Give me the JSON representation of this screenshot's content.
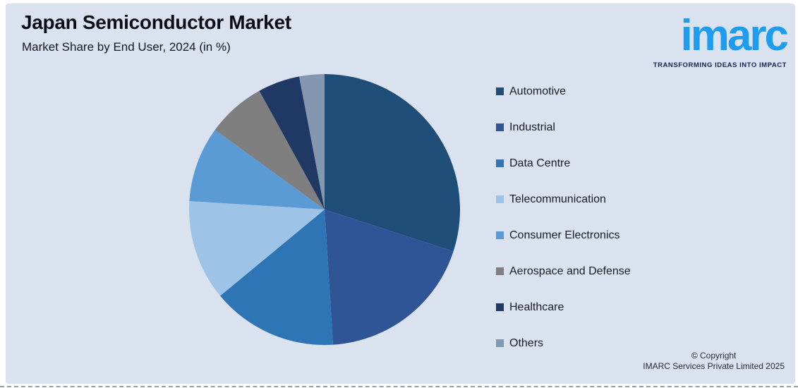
{
  "header": {
    "title": "Japan Semiconductor Market",
    "subtitle": "Market Share by End User, 2024 (in %)"
  },
  "logo": {
    "brand": "imarc",
    "tagline": "TRANSFORMING IDEAS INTO IMPACT",
    "brand_color": "#1e9df0",
    "tagline_color": "#122450"
  },
  "chart_data": {
    "type": "pie",
    "title": "Japan Semiconductor Market",
    "subtitle": "Market Share by End User, 2024 (in %)",
    "unit": "%",
    "start_angle_deg": 0,
    "direction": "clockwise",
    "legend_position": "right",
    "data_labels_shown": false,
    "segments": [
      {
        "label": "Automotive",
        "value": 30,
        "color": "#1f4e79"
      },
      {
        "label": "Industrial",
        "value": 19,
        "color": "#2f5597"
      },
      {
        "label": "Data Centre",
        "value": 15,
        "color": "#2e75b6"
      },
      {
        "label": "Telecommunication",
        "value": 12,
        "color": "#9dc3e6"
      },
      {
        "label": "Consumer Electronics",
        "value": 9,
        "color": "#5b9bd5"
      },
      {
        "label": "Aerospace and Defense",
        "value": 7,
        "color": "#7f7f7f"
      },
      {
        "label": "Healthcare",
        "value": 5,
        "color": "#1f3864"
      },
      {
        "label": "Others",
        "value": 3,
        "color": "#8497b0"
      }
    ]
  },
  "footer": {
    "copyright_line1": "© Copyright",
    "copyright_line2": "IMARC Services Private Limited 2025"
  },
  "theme": {
    "card_background": "#dae2f0",
    "page_background": "#ffffff"
  }
}
